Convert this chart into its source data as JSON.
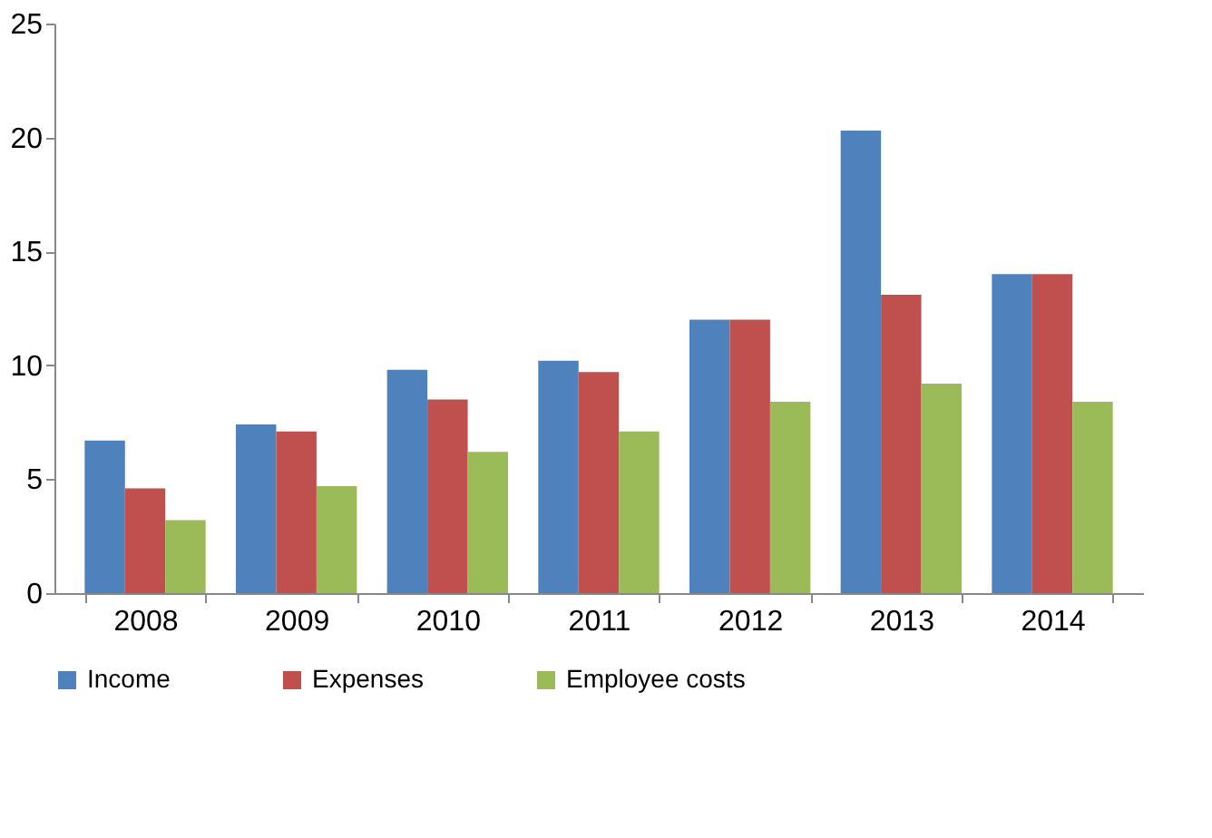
{
  "chart_data": {
    "type": "bar",
    "categories": [
      "2008",
      "2009",
      "2010",
      "2011",
      "2012",
      "2013",
      "2014"
    ],
    "series": [
      {
        "name": "Income",
        "color": "#4f81bd",
        "values": [
          6.7,
          7.4,
          9.8,
          10.2,
          12.0,
          20.3,
          14.0
        ]
      },
      {
        "name": "Expenses",
        "color": "#c0504d",
        "values": [
          4.6,
          7.1,
          8.5,
          9.7,
          12.0,
          13.1,
          14.0
        ]
      },
      {
        "name": "Employee costs",
        "color": "#9bbb59",
        "values": [
          3.2,
          4.7,
          6.2,
          7.1,
          8.4,
          9.2,
          8.4
        ]
      }
    ],
    "ylim": [
      0,
      25
    ],
    "yticks": [
      0,
      5,
      10,
      15,
      20,
      25
    ],
    "grid": false,
    "legend": "bottom"
  }
}
